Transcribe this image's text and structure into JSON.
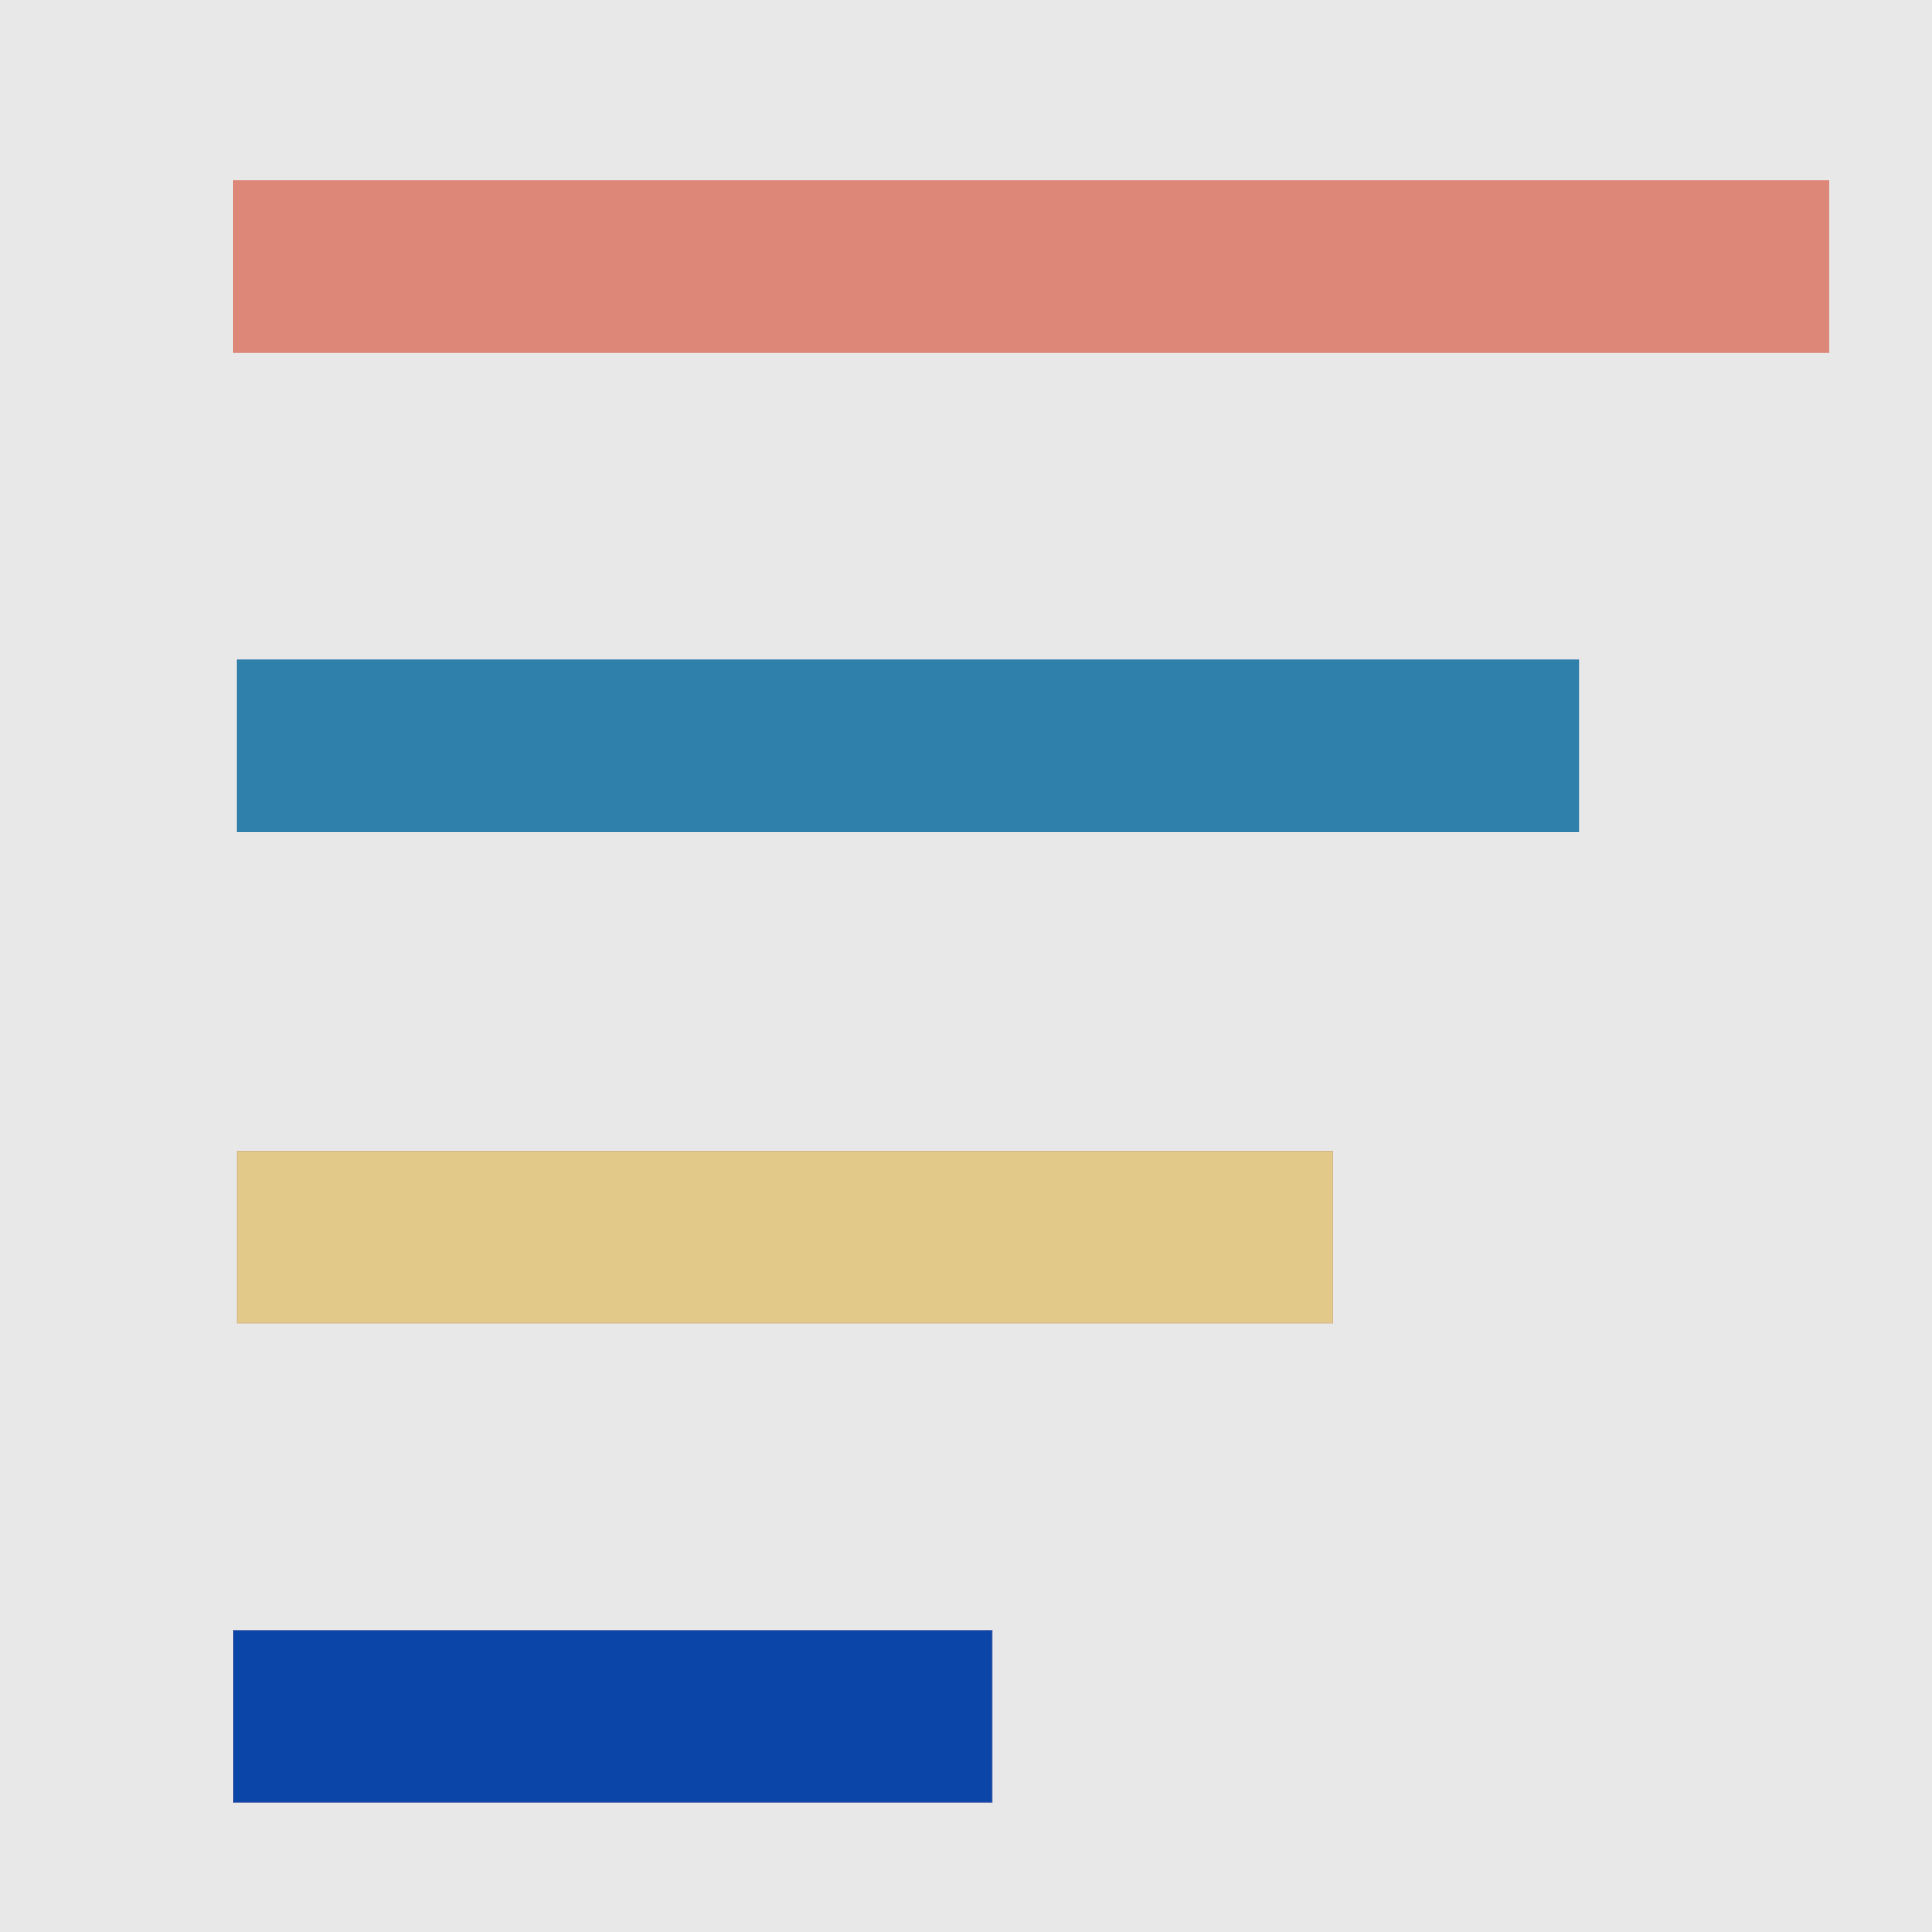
{
  "bars": [
    {
      "color": "#dd8779"
    },
    {
      "color": "#2f80aa"
    },
    {
      "color": "#e2c98a"
    },
    {
      "color": "#0b45a8"
    }
  ]
}
